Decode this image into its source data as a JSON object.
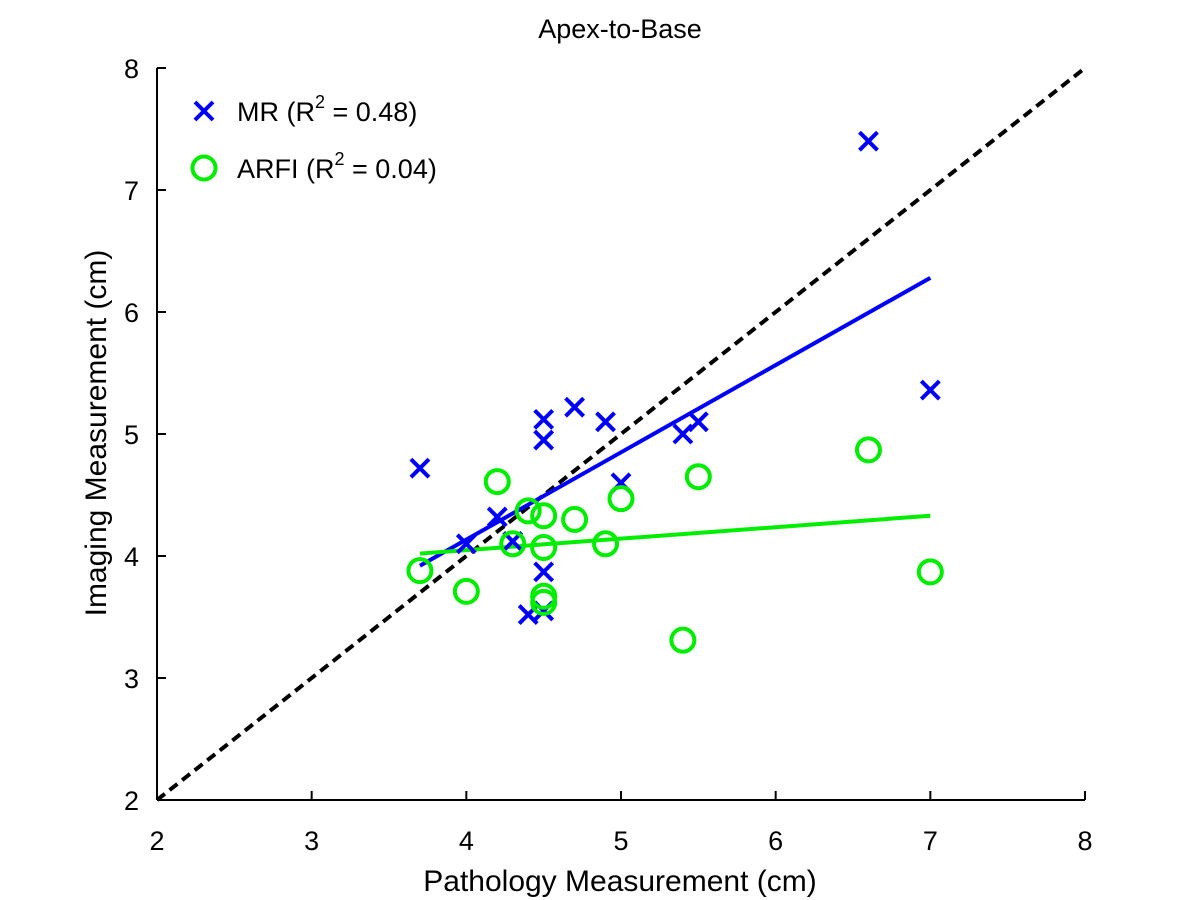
{
  "chart_data": {
    "type": "scatter",
    "title": "Apex-to-Base",
    "xlabel": "Pathology Measurement (cm)",
    "ylabel": "Imaging Measurement (cm)",
    "xlim": [
      2,
      8
    ],
    "ylim": [
      2,
      8
    ],
    "xticks": [
      2,
      3,
      4,
      5,
      6,
      7,
      8
    ],
    "yticks": [
      2,
      3,
      4,
      5,
      6,
      7,
      8
    ],
    "grid": false,
    "legend_position": "top-left",
    "reference_line": {
      "style": "dashed",
      "color": "#000000",
      "x": [
        2,
        8
      ],
      "y": [
        2,
        8
      ]
    },
    "series": [
      {
        "name": "MR",
        "legend_prefix": "MR (R",
        "legend_sup": "2",
        "legend_suffix": " = 0.48)",
        "marker": "x",
        "color": "#0000ff",
        "points": [
          [
            3.7,
            4.72
          ],
          [
            4.0,
            4.1
          ],
          [
            4.2,
            4.32
          ],
          [
            4.3,
            4.12
          ],
          [
            4.4,
            3.52
          ],
          [
            4.5,
            5.12
          ],
          [
            4.5,
            4.95
          ],
          [
            4.5,
            3.87
          ],
          [
            4.5,
            3.55
          ],
          [
            4.7,
            5.22
          ],
          [
            4.9,
            5.1
          ],
          [
            5.0,
            4.6
          ],
          [
            5.4,
            5.0
          ],
          [
            5.5,
            5.1
          ],
          [
            6.6,
            7.4
          ],
          [
            7.0,
            5.36
          ]
        ],
        "fit": {
          "x": [
            3.7,
            7.0
          ],
          "y": [
            3.92,
            6.28
          ]
        }
      },
      {
        "name": "ARFI",
        "legend_prefix": "ARFI (R",
        "legend_sup": "2",
        "legend_suffix": " = 0.04)",
        "marker": "o",
        "color": "#00ee00",
        "points": [
          [
            3.7,
            3.88
          ],
          [
            4.0,
            3.71
          ],
          [
            4.2,
            4.61
          ],
          [
            4.3,
            4.1
          ],
          [
            4.4,
            4.37
          ],
          [
            4.5,
            4.33
          ],
          [
            4.5,
            4.07
          ],
          [
            4.5,
            3.67
          ],
          [
            4.5,
            3.62
          ],
          [
            4.7,
            4.3
          ],
          [
            4.9,
            4.1
          ],
          [
            5.0,
            4.47
          ],
          [
            5.4,
            3.31
          ],
          [
            5.5,
            4.65
          ],
          [
            6.6,
            4.87
          ],
          [
            7.0,
            3.87
          ]
        ],
        "fit": {
          "x": [
            3.7,
            7.0
          ],
          "y": [
            4.02,
            4.33
          ]
        }
      }
    ]
  }
}
